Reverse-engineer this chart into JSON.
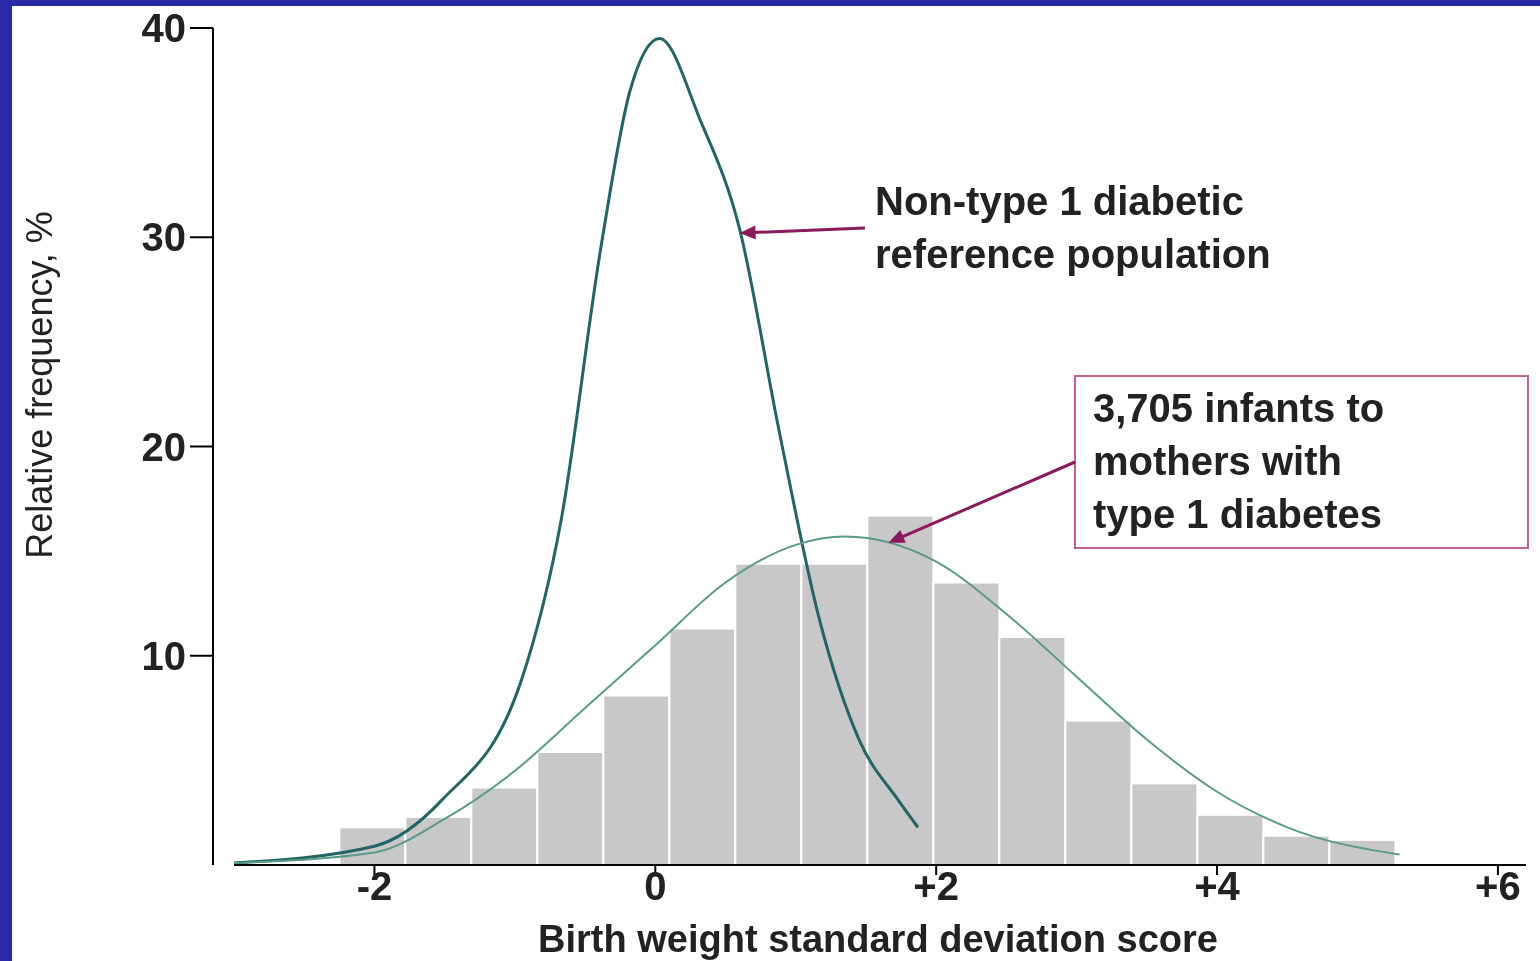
{
  "chart_data": {
    "type": "histogram",
    "xlabel": "Birth weight standard deviation score",
    "ylabel": "Relative frequency, %",
    "bins": [
      -2.25,
      -1.78,
      -1.31,
      -0.84,
      -0.37,
      0.1,
      0.57,
      1.04,
      1.51,
      1.98,
      2.45,
      2.92,
      3.39,
      3.86,
      4.33,
      4.8,
      5.27
    ],
    "values": [
      1.8,
      2.3,
      3.7,
      5.4,
      8.1,
      11.3,
      14.4,
      14.4,
      16.7,
      13.5,
      10.9,
      6.9,
      3.9,
      2.4,
      1.4,
      1.2
    ],
    "color": "#c8c8c8",
    "series": [
      {
        "type": "line",
        "color": "#246464",
        "x": [
          -3.0,
          -2.0,
          -1.52,
          -0.95,
          -0.67,
          -0.39,
          -0.18,
          0.03,
          0.32,
          0.6,
          0.88,
          1.17,
          1.45,
          1.73,
          1.87
        ],
        "values": [
          0.1,
          0.9,
          3.1,
          8.9,
          16.5,
          29.4,
          37,
          39.5,
          35.6,
          30.4,
          20.8,
          11.7,
          6,
          3.1,
          1.8
        ]
      },
      {
        "type": "line",
        "color": "#5a9a8a",
        "x": [
          -3.0,
          -2.0,
          -1.5,
          -1.0,
          -0.5,
          0,
          0.5,
          1.0,
          1.35,
          2.0,
          2.5,
          3.0,
          3.5,
          4.0,
          4.5,
          5.3
        ],
        "values": [
          0.1,
          0.6,
          2.2,
          4.5,
          7.5,
          10.5,
          13.5,
          15.3,
          15.7,
          14.5,
          12,
          9,
          6,
          3.5,
          1.8,
          0.5
        ]
      }
    ],
    "annotations": [
      {
        "text": "Non-type 1 diabetic reference population",
        "x": 0.6,
        "y": 30.2
      },
      {
        "text": "3,705 infants to mothers with type 1 diabetes",
        "x": 1.66,
        "y": 15.4
      }
    ],
    "xlim": [
      -3.0,
      6.2
    ],
    "xticks": [
      -2,
      0,
      {
        "value": 2,
        "label": "+2"
      },
      {
        "value": 4,
        "label": "+4"
      },
      {
        "value": 6,
        "label": "+6"
      }
    ],
    "ylim": [
      0,
      40
    ],
    "yticks": [
      10,
      20,
      30,
      40
    ]
  }
}
